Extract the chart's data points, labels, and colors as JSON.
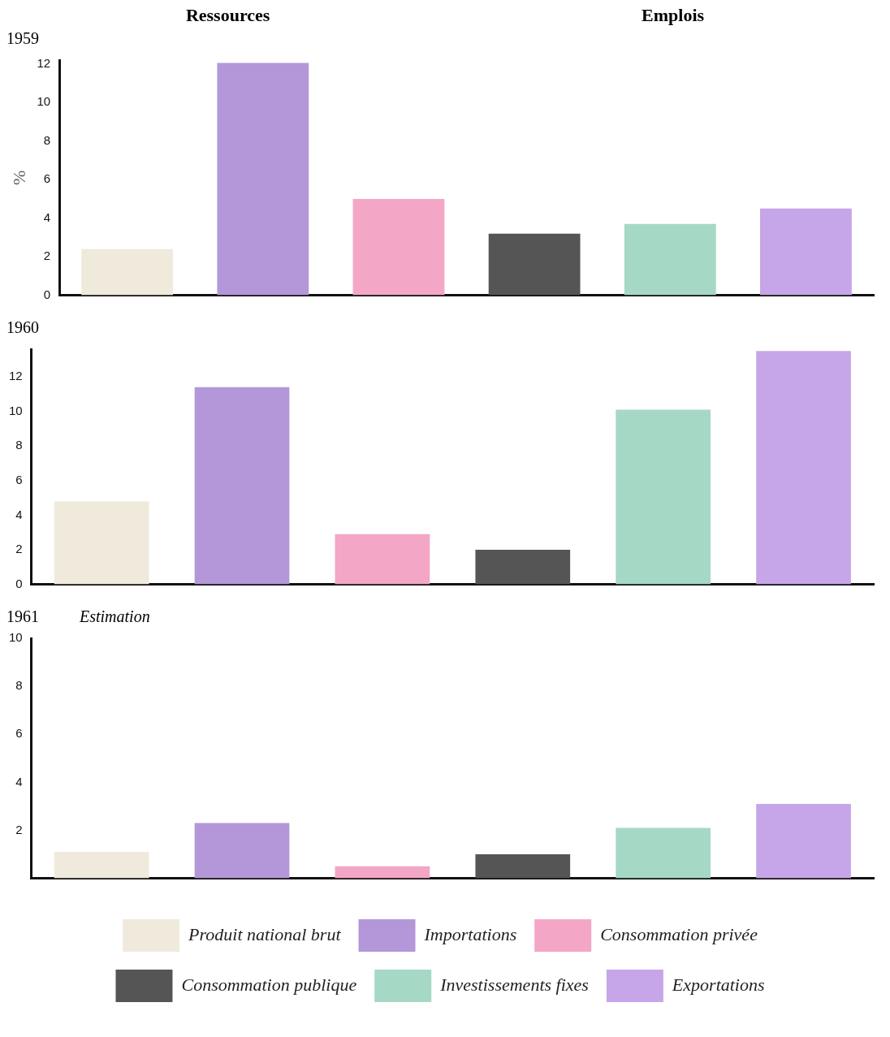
{
  "chart_data": [
    {
      "type": "bar",
      "title": "1959",
      "annotations": [
        "Ressources",
        "Emplois"
      ],
      "ylabel": "%",
      "categories": [
        null,
        null,
        null,
        null,
        null,
        null
      ],
      "ylim": [
        0,
        12.2
      ],
      "yticks": [
        0,
        2,
        4,
        6,
        8,
        10,
        12
      ],
      "legend": false,
      "series": [
        {
          "color": "#efeadc",
          "values": [
            2.4,
            null,
            null,
            null,
            null,
            null
          ]
        },
        {
          "color": "#b497d8",
          "values": [
            null,
            12.05,
            null,
            null,
            null,
            null
          ]
        },
        {
          "color": "#f3a6c6",
          "values": [
            null,
            null,
            5.0,
            null,
            null,
            null
          ]
        },
        {
          "color": "#555555",
          "values": [
            null,
            null,
            null,
            3.2,
            null,
            null
          ]
        },
        {
          "color": "#a6d8c6",
          "values": [
            null,
            null,
            null,
            null,
            3.7,
            null
          ]
        },
        {
          "color": "#c6a6e8",
          "values": [
            null,
            null,
            null,
            null,
            null,
            4.5
          ]
        }
      ]
    },
    {
      "type": "bar",
      "title": "1960",
      "categories": [
        null,
        null,
        null,
        null,
        null,
        null
      ],
      "ylim": [
        0,
        13.6
      ],
      "yticks": [
        0,
        2,
        4,
        6,
        8,
        10,
        12
      ],
      "legend": false,
      "series": [
        {
          "color": "#efeadc",
          "values": [
            4.8,
            null,
            null,
            null,
            null,
            null
          ]
        },
        {
          "color": "#b497d8",
          "values": [
            null,
            11.4,
            null,
            null,
            null,
            null
          ]
        },
        {
          "color": "#f3a6c6",
          "values": [
            null,
            null,
            2.9,
            null,
            null,
            null
          ]
        },
        {
          "color": "#555555",
          "values": [
            null,
            null,
            null,
            2.0,
            null,
            null
          ]
        },
        {
          "color": "#a6d8c6",
          "values": [
            null,
            null,
            null,
            null,
            10.1,
            null
          ]
        },
        {
          "color": "#c6a6e8",
          "values": [
            null,
            null,
            null,
            null,
            null,
            13.5
          ]
        }
      ]
    },
    {
      "type": "bar",
      "title": "1961",
      "subtitle": "Estimation",
      "categories": [
        null,
        null,
        null,
        null,
        null,
        null
      ],
      "ylim": [
        0,
        10
      ],
      "yticks": [
        2,
        4,
        6,
        8,
        10
      ],
      "legend": "bottom",
      "series": [
        {
          "name": "Produit national brut",
          "color": "#efeadc",
          "values": [
            1.1,
            null,
            null,
            null,
            null,
            null
          ]
        },
        {
          "name": "Importations",
          "color": "#b497d8",
          "values": [
            null,
            2.3,
            null,
            null,
            null,
            null
          ]
        },
        {
          "name": "Consommation privée",
          "color": "#f3a6c6",
          "values": [
            null,
            null,
            0.5,
            null,
            null,
            null
          ]
        },
        {
          "name": "Consommation publique",
          "color": "#555555",
          "values": [
            null,
            null,
            null,
            1.0,
            null,
            null
          ]
        },
        {
          "name": "Investissements fixes",
          "color": "#a6d8c6",
          "values": [
            null,
            null,
            null,
            null,
            2.1,
            null
          ]
        },
        {
          "name": "Exportations",
          "color": "#c6a6e8",
          "values": [
            null,
            null,
            null,
            null,
            null,
            3.1
          ]
        }
      ]
    }
  ]
}
